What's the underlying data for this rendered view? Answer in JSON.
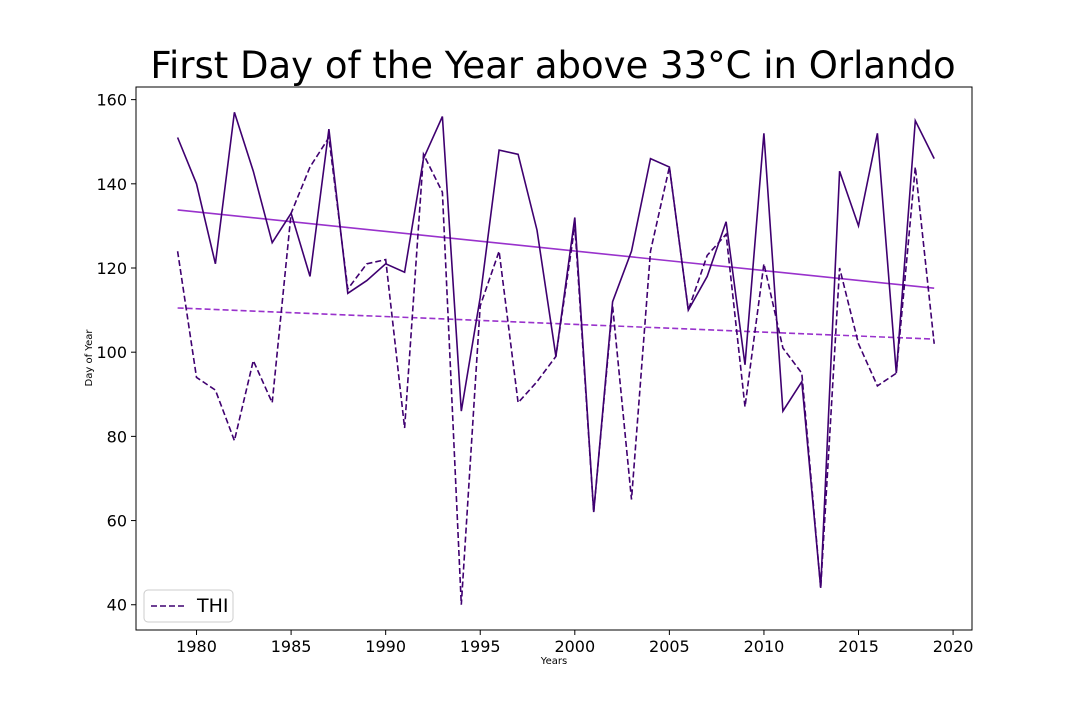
{
  "chart_data": {
    "type": "line",
    "title": "First Day of the Year above 33°C in Orlando",
    "xlabel": "Years",
    "ylabel": "Day of Year",
    "xlim": [
      1976.8,
      2021.0
    ],
    "ylim": [
      34,
      163
    ],
    "xticks": [
      1980,
      1985,
      1990,
      1995,
      2000,
      2005,
      2010,
      2015,
      2020
    ],
    "yticks": [
      40,
      60,
      80,
      100,
      120,
      140,
      160
    ],
    "grid": false,
    "legend": {
      "position": "bottom-left",
      "entries": [
        "THI"
      ]
    },
    "x": [
      1979,
      1980,
      1981,
      1982,
      1983,
      1984,
      1985,
      1986,
      1987,
      1988,
      1989,
      1990,
      1991,
      1992,
      1993,
      1994,
      1995,
      1996,
      1997,
      1998,
      1999,
      2000,
      2001,
      2002,
      2003,
      2004,
      2005,
      2006,
      2007,
      2008,
      2009,
      2010,
      2011,
      2012,
      2013,
      2014,
      2015,
      2016,
      2017,
      2018,
      2019
    ],
    "series": [
      {
        "style": "solid",
        "color": "#3f0070",
        "values": [
          151,
          140,
          121,
          157,
          143,
          126,
          133,
          118,
          153,
          114,
          117,
          121,
          119,
          146,
          156,
          86,
          113,
          148,
          147,
          129,
          99,
          132,
          62,
          112,
          124,
          146,
          144,
          110,
          118,
          131,
          97,
          152,
          86,
          93,
          44,
          143,
          130,
          152,
          95,
          155,
          146
        ]
      },
      {
        "name": "THI",
        "style": "dashed",
        "color": "#3f0070",
        "values": [
          124,
          94,
          91,
          79,
          98,
          88,
          133,
          144,
          151,
          115,
          121,
          122,
          82,
          147,
          138,
          40,
          111,
          124,
          88,
          93,
          99,
          130,
          62,
          111,
          65,
          124,
          144,
          110,
          123,
          128,
          87,
          121,
          101,
          95,
          44,
          120,
          102,
          92,
          95,
          144,
          102
        ]
      }
    ],
    "trendlines": [
      {
        "style": "solid",
        "color": "#9932cc",
        "x": [
          1979,
          2019
        ],
        "y": [
          133.8,
          115.2
        ]
      },
      {
        "style": "dashed",
        "color": "#9932cc",
        "x": [
          1979,
          2019
        ],
        "y": [
          110.5,
          103.1
        ]
      }
    ]
  }
}
